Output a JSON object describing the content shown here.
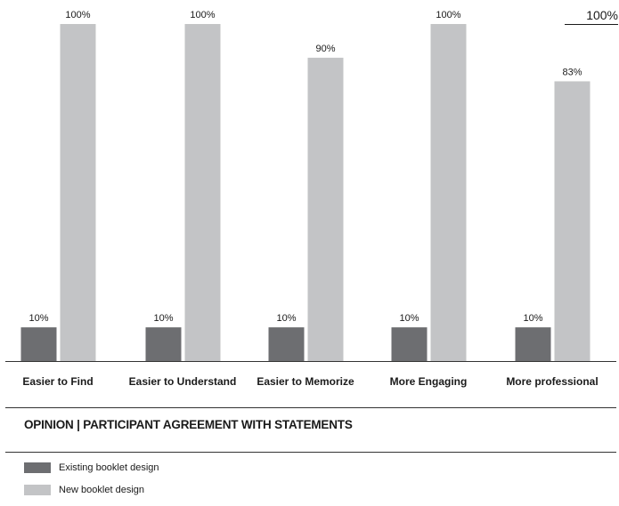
{
  "chart_data": {
    "type": "bar",
    "title": "OPINION | PARTICIPANT AGREEMENT WITH STATEMENTS",
    "categories": [
      "Easier to Find",
      "Easier to Understand",
      "Easier to Memorize",
      "More Engaging",
      "More professional"
    ],
    "series": [
      {
        "name": "Existing booklet design",
        "values": [
          10,
          10,
          10,
          10,
          10
        ],
        "color": "#6d6e71"
      },
      {
        "name": "New booklet design",
        "values": [
          100,
          100,
          90,
          100,
          83
        ],
        "color": "#c3c4c6"
      }
    ],
    "value_labels": [
      [
        "10%",
        "10%",
        "10%",
        "10%",
        "10%"
      ],
      [
        "100%",
        "100%",
        "90%",
        "100%",
        "83%"
      ]
    ],
    "ylim": [
      0,
      100
    ],
    "reference_label": "100%",
    "legend_position": "bottom-left",
    "grid": false
  }
}
